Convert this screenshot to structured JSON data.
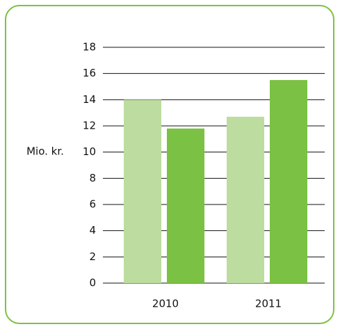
{
  "chart_data": {
    "type": "bar",
    "y_axis_label": "Mio. kr.",
    "categories": [
      "2010",
      "2011"
    ],
    "series": [
      {
        "color": "#bddc9f",
        "values": [
          14.0,
          12.7
        ]
      },
      {
        "color": "#7bc143",
        "values": [
          11.8,
          15.5
        ]
      }
    ],
    "ylim": [
      0,
      18
    ],
    "yticks": [
      0,
      2,
      4,
      6,
      8,
      10,
      12,
      14,
      16,
      18
    ],
    "grid": true
  }
}
